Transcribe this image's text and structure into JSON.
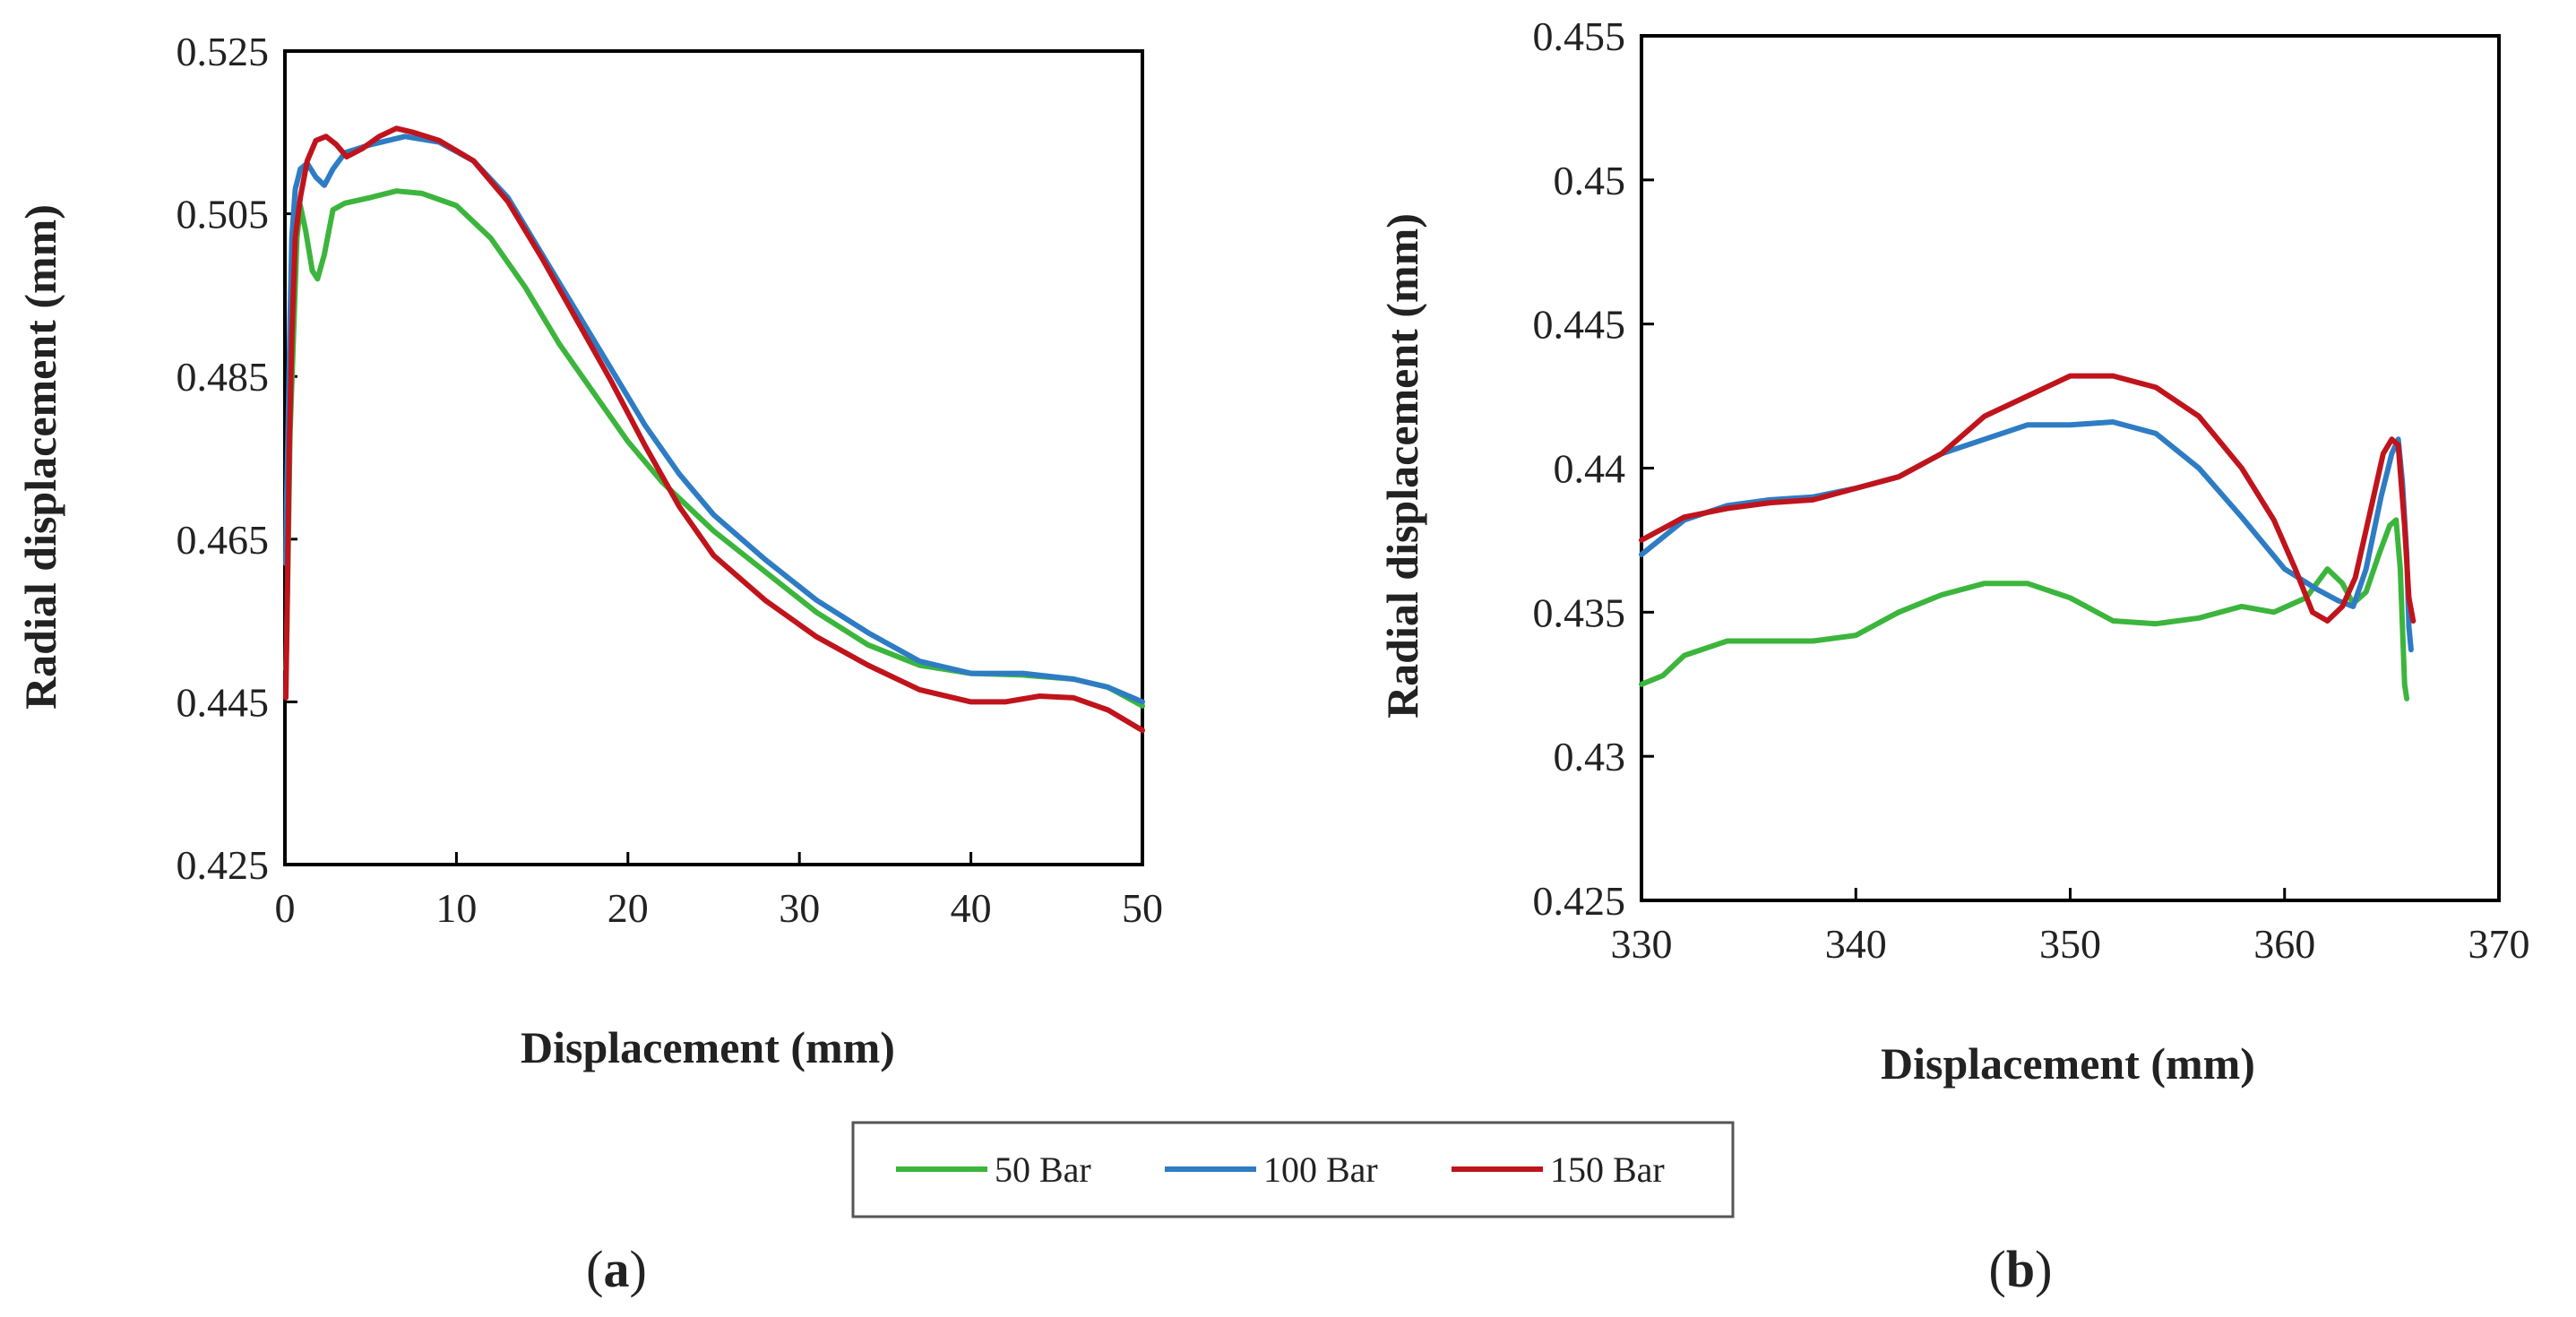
{
  "chart_data": [
    {
      "type": "line",
      "panel_label": "(a)",
      "panel_label_parts": [
        "(",
        "a",
        ")"
      ],
      "xlabel": "Displacement (mm)",
      "ylabel": "Radial displacement (mm)",
      "xlim": [
        0,
        50
      ],
      "ylim": [
        0.425,
        0.525
      ],
      "x_ticks": [
        0,
        10,
        20,
        30,
        40,
        50
      ],
      "x_tick_labels": [
        "0",
        "10",
        "20",
        "30",
        "40",
        "50"
      ],
      "y_ticks": [
        0.425,
        0.445,
        0.465,
        0.485,
        0.505,
        0.525
      ],
      "y_tick_labels": [
        "0.425",
        "0.445",
        "0.465",
        "0.485",
        "0.505",
        "0.525"
      ],
      "grid": false,
      "series": [
        {
          "name": "50 Bar",
          "color": "#3cb53c",
          "points": [
            [
              0.05,
              0.449
            ],
            [
              0.1,
              0.452
            ],
            [
              0.2,
              0.465
            ],
            [
              0.3,
              0.478
            ],
            [
              0.5,
              0.49
            ],
            [
              0.7,
              0.502
            ],
            [
              0.9,
              0.506
            ],
            [
              1.2,
              0.503
            ],
            [
              1.6,
              0.498
            ],
            [
              1.9,
              0.497
            ],
            [
              2.3,
              0.5
            ],
            [
              2.8,
              0.5055
            ],
            [
              3.5,
              0.5063
            ],
            [
              5,
              0.507
            ],
            [
              6.5,
              0.5078
            ],
            [
              8,
              0.5075
            ],
            [
              10,
              0.506
            ],
            [
              12,
              0.502
            ],
            [
              14,
              0.496
            ],
            [
              16,
              0.489
            ],
            [
              18,
              0.483
            ],
            [
              20,
              0.477
            ],
            [
              22,
              0.472
            ],
            [
              25,
              0.466
            ],
            [
              28,
              0.461
            ],
            [
              31,
              0.456
            ],
            [
              34,
              0.452
            ],
            [
              37,
              0.4495
            ],
            [
              40,
              0.4485
            ],
            [
              43,
              0.4483
            ],
            [
              46,
              0.4478
            ],
            [
              48,
              0.4468
            ],
            [
              50,
              0.4445
            ]
          ]
        },
        {
          "name": "100 Bar",
          "color": "#2e7cc4",
          "points": [
            [
              0.05,
              0.462
            ],
            [
              0.1,
              0.47
            ],
            [
              0.2,
              0.48
            ],
            [
              0.3,
              0.492
            ],
            [
              0.4,
              0.502
            ],
            [
              0.6,
              0.508
            ],
            [
              0.9,
              0.5105
            ],
            [
              1.3,
              0.5112
            ],
            [
              1.8,
              0.5095
            ],
            [
              2.3,
              0.5085
            ],
            [
              2.8,
              0.5105
            ],
            [
              3.5,
              0.5125
            ],
            [
              5,
              0.5135
            ],
            [
              7,
              0.5145
            ],
            [
              9,
              0.5138
            ],
            [
              11,
              0.5115
            ],
            [
              13,
              0.507
            ],
            [
              15,
              0.5
            ],
            [
              17,
              0.493
            ],
            [
              19,
              0.486
            ],
            [
              21,
              0.479
            ],
            [
              23,
              0.473
            ],
            [
              25,
              0.468
            ],
            [
              28,
              0.4625
            ],
            [
              31,
              0.4575
            ],
            [
              34,
              0.4535
            ],
            [
              37,
              0.45
            ],
            [
              40,
              0.4485
            ],
            [
              43,
              0.4485
            ],
            [
              46,
              0.4478
            ],
            [
              48,
              0.4468
            ],
            [
              50,
              0.445
            ]
          ]
        },
        {
          "name": "150 Bar",
          "color": "#c0141c",
          "points": [
            [
              0.05,
              0.4455
            ],
            [
              0.15,
              0.46
            ],
            [
              0.25,
              0.476
            ],
            [
              0.4,
              0.49
            ],
            [
              0.6,
              0.502
            ],
            [
              0.9,
              0.507
            ],
            [
              1.3,
              0.5115
            ],
            [
              1.8,
              0.514
            ],
            [
              2.4,
              0.5145
            ],
            [
              3,
              0.5135
            ],
            [
              3.6,
              0.512
            ],
            [
              4.5,
              0.513
            ],
            [
              5.5,
              0.5145
            ],
            [
              6.5,
              0.5155
            ],
            [
              7.5,
              0.515
            ],
            [
              9,
              0.514
            ],
            [
              11,
              0.5115
            ],
            [
              13,
              0.5065
            ],
            [
              15,
              0.4995
            ],
            [
              17,
              0.492
            ],
            [
              19,
              0.4845
            ],
            [
              21,
              0.4765
            ],
            [
              23,
              0.469
            ],
            [
              25,
              0.463
            ],
            [
              28,
              0.4575
            ],
            [
              31,
              0.453
            ],
            [
              34,
              0.4495
            ],
            [
              37,
              0.4465
            ],
            [
              40,
              0.445
            ],
            [
              42,
              0.445
            ],
            [
              44,
              0.4457
            ],
            [
              46,
              0.4455
            ],
            [
              48,
              0.444
            ],
            [
              50,
              0.4415
            ]
          ]
        }
      ]
    },
    {
      "type": "line",
      "panel_label": "(b)",
      "panel_label_parts": [
        "(",
        "b",
        ")"
      ],
      "xlabel": "Displacement (mm)",
      "ylabel": "Radial displacement (mm)",
      "xlim": [
        330,
        370
      ],
      "ylim": [
        0.425,
        0.455
      ],
      "x_ticks": [
        330,
        340,
        350,
        360,
        370
      ],
      "x_tick_labels": [
        "330",
        "340",
        "350",
        "360",
        "370"
      ],
      "y_ticks": [
        0.425,
        0.43,
        0.435,
        0.44,
        0.445,
        0.45,
        0.455
      ],
      "y_tick_labels": [
        "0.425",
        "0.43",
        "0.435",
        "0.44",
        "0.445",
        "0.45",
        "0.455"
      ],
      "grid": false,
      "series": [
        {
          "name": "50 Bar",
          "color": "#3cb53c",
          "points": [
            [
              330,
              0.4325
            ],
            [
              331,
              0.4328
            ],
            [
              332,
              0.4335
            ],
            [
              334,
              0.434
            ],
            [
              336,
              0.434
            ],
            [
              338,
              0.434
            ],
            [
              340,
              0.4342
            ],
            [
              342,
              0.435
            ],
            [
              344,
              0.4356
            ],
            [
              346,
              0.436
            ],
            [
              348,
              0.436
            ],
            [
              350,
              0.4355
            ],
            [
              352,
              0.4347
            ],
            [
              354,
              0.4346
            ],
            [
              356,
              0.4348
            ],
            [
              358,
              0.4352
            ],
            [
              359.5,
              0.435
            ],
            [
              361,
              0.4355
            ],
            [
              362,
              0.4365
            ],
            [
              362.7,
              0.436
            ],
            [
              363.2,
              0.4353
            ],
            [
              363.8,
              0.4357
            ],
            [
              364.4,
              0.437
            ],
            [
              364.9,
              0.438
            ],
            [
              365.2,
              0.4382
            ],
            [
              365.4,
              0.4365
            ],
            [
              365.5,
              0.4345
            ],
            [
              365.6,
              0.4325
            ],
            [
              365.7,
              0.432
            ]
          ]
        },
        {
          "name": "100 Bar",
          "color": "#2e7cc4",
          "points": [
            [
              330,
              0.437
            ],
            [
              332,
              0.4382
            ],
            [
              334,
              0.4387
            ],
            [
              336,
              0.4389
            ],
            [
              338,
              0.439
            ],
            [
              340,
              0.4393
            ],
            [
              342,
              0.4397
            ],
            [
              344,
              0.4405
            ],
            [
              346,
              0.441
            ],
            [
              348,
              0.4415
            ],
            [
              350,
              0.4415
            ],
            [
              352,
              0.4416
            ],
            [
              354,
              0.4412
            ],
            [
              356,
              0.44
            ],
            [
              358,
              0.4383
            ],
            [
              360,
              0.4365
            ],
            [
              361.5,
              0.4358
            ],
            [
              362.5,
              0.4354
            ],
            [
              363.2,
              0.4352
            ],
            [
              363.8,
              0.4365
            ],
            [
              364.5,
              0.439
            ],
            [
              365,
              0.4405
            ],
            [
              365.3,
              0.441
            ],
            [
              365.5,
              0.4395
            ],
            [
              365.7,
              0.437
            ],
            [
              365.8,
              0.4345
            ],
            [
              365.9,
              0.4337
            ]
          ]
        },
        {
          "name": "150 Bar",
          "color": "#c0141c",
          "points": [
            [
              330,
              0.4375
            ],
            [
              332,
              0.4383
            ],
            [
              334,
              0.4386
            ],
            [
              336,
              0.4388
            ],
            [
              338,
              0.4389
            ],
            [
              340,
              0.4393
            ],
            [
              342,
              0.4397
            ],
            [
              344,
              0.4405
            ],
            [
              346,
              0.4418
            ],
            [
              348,
              0.4425
            ],
            [
              350,
              0.4432
            ],
            [
              352,
              0.4432
            ],
            [
              354,
              0.4428
            ],
            [
              356,
              0.4418
            ],
            [
              358,
              0.44
            ],
            [
              359.5,
              0.4382
            ],
            [
              360.5,
              0.4365
            ],
            [
              361.3,
              0.435
            ],
            [
              362,
              0.4347
            ],
            [
              362.7,
              0.4352
            ],
            [
              363.3,
              0.4362
            ],
            [
              364,
              0.4385
            ],
            [
              364.6,
              0.4405
            ],
            [
              365,
              0.441
            ],
            [
              365.3,
              0.4408
            ],
            [
              365.6,
              0.438
            ],
            [
              365.8,
              0.4355
            ],
            [
              366,
              0.4347
            ]
          ]
        }
      ]
    }
  ],
  "legend": {
    "placement": "bottom-center",
    "entries": [
      {
        "label": "50 Bar",
        "color": "#3cb53c"
      },
      {
        "label": "100 Bar",
        "color": "#2e7cc4"
      },
      {
        "label": "150 Bar",
        "color": "#c0141c"
      }
    ]
  }
}
